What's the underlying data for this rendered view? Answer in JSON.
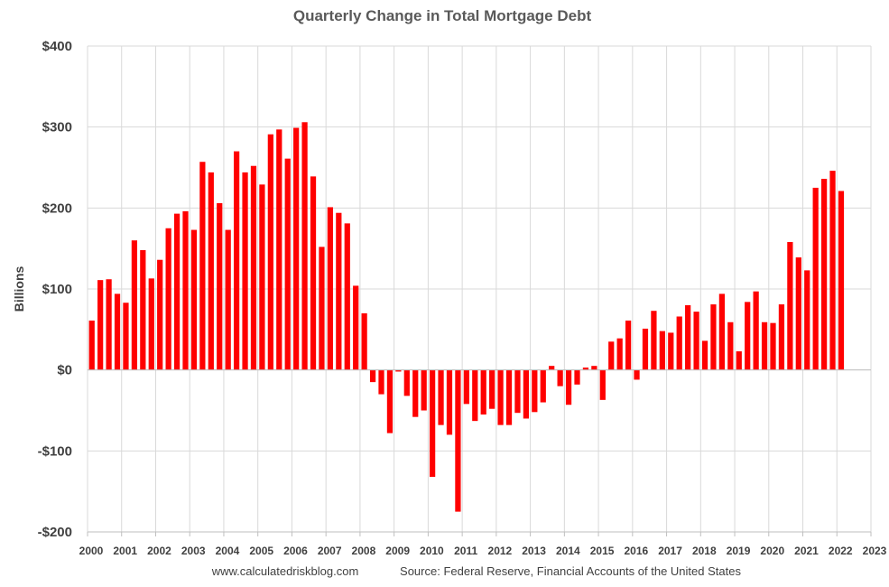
{
  "chart_data": {
    "type": "bar",
    "title": "Quarterly Change in Total Mortgage Debt",
    "ylabel": "Billions",
    "xlabel": "",
    "ylim": [
      -200,
      400
    ],
    "yticks": [
      -200,
      -100,
      0,
      100,
      200,
      300,
      400
    ],
    "ytick_labels": [
      "-$200",
      "-$100",
      "$0",
      "$100",
      "$200",
      "$300",
      "$400"
    ],
    "x_tick_labels": [
      "2000",
      "2001",
      "2002",
      "2003",
      "2004",
      "2005",
      "2006",
      "2007",
      "2008",
      "2009",
      "2010",
      "2011",
      "2012",
      "2013",
      "2014",
      "2015",
      "2016",
      "2017",
      "2018",
      "2019",
      "2020",
      "2021",
      "2022",
      "2023"
    ],
    "first_quarter": "2000Q1",
    "grid": true,
    "bar_color": "#ff0000",
    "values": [
      61,
      111,
      112,
      94,
      83,
      160,
      148,
      113,
      136,
      175,
      193,
      196,
      173,
      257,
      244,
      206,
      173,
      270,
      244,
      252,
      229,
      291,
      297,
      261,
      299,
      306,
      239,
      152,
      201,
      194,
      181,
      104,
      70,
      -15,
      -30,
      -78,
      -2,
      -32,
      -58,
      -50,
      -132,
      -68,
      -80,
      -175,
      -42,
      -63,
      -55,
      -48,
      -68,
      -68,
      -53,
      -60,
      -52,
      -40,
      5,
      -20,
      -43,
      -18,
      3,
      5,
      -37,
      35,
      39,
      61,
      -12,
      51,
      73,
      48,
      46,
      66,
      80,
      72,
      36,
      81,
      94,
      59,
      23,
      84,
      97,
      59,
      58,
      81,
      158,
      139,
      123,
      225,
      236,
      246,
      221
    ],
    "footer": {
      "site": "www.calculatedriskblog.com",
      "source": "Source: Federal Reserve, Financial Accounts of the United States"
    }
  }
}
